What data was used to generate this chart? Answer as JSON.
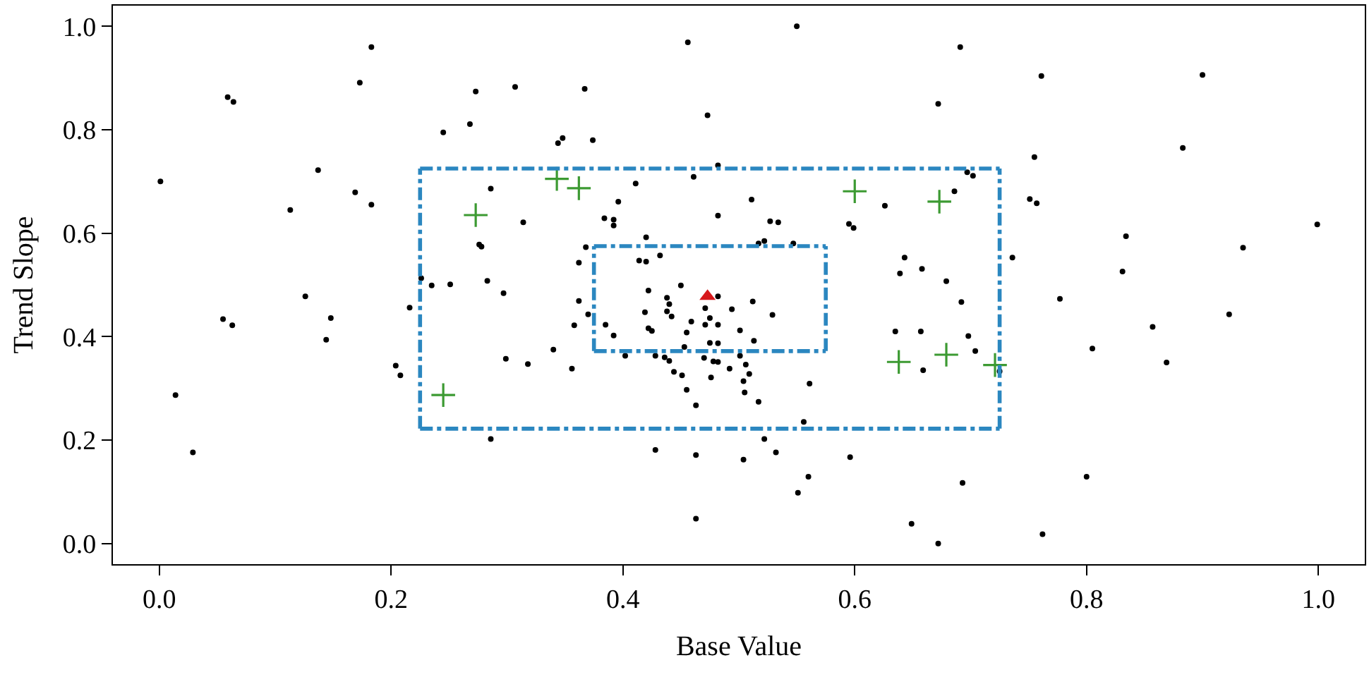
{
  "chart_data": {
    "type": "scatter",
    "xlabel": "Base Value",
    "ylabel": "Trend Slope",
    "xlim": [
      -0.04,
      1.04
    ],
    "ylim": [
      -0.04,
      1.04
    ],
    "xticks": [
      {
        "value": 0,
        "label": "0.0"
      },
      0.2,
      0.4,
      0.6,
      0.8,
      {
        "value": 1,
        "label": "1.0"
      }
    ],
    "yticks": [
      {
        "value": 0,
        "label": "0.0"
      },
      0.2,
      0.4,
      0.6,
      0.8,
      {
        "value": 1,
        "label": "1.0"
      }
    ],
    "grid": false,
    "legend": false,
    "series": [
      {
        "type": "scatter",
        "marker": "circle",
        "color": "#000000",
        "x": [
          0.001,
          0.059,
          0.064,
          0.183,
          0.173,
          0.273,
          0.307,
          0.245,
          0.268,
          0.137,
          0.169,
          0.183,
          0.113,
          0.286,
          0.314,
          0.276,
          0.278,
          0.226,
          0.235,
          0.251,
          0.283,
          0.297,
          0.126,
          0.055,
          0.063,
          0.148,
          0.144,
          0.014,
          0.029,
          0.204,
          0.208,
          0.216,
          0.299,
          0.318,
          0.286,
          0.456,
          0.55,
          0.367,
          0.473,
          0.672,
          0.344,
          0.348,
          0.374,
          0.482,
          0.461,
          0.411,
          0.396,
          0.511,
          0.384,
          0.392,
          0.392,
          0.482,
          0.527,
          0.534,
          0.626,
          0.595,
          0.599,
          0.42,
          0.368,
          0.362,
          0.414,
          0.42,
          0.432,
          0.517,
          0.522,
          0.547,
          0.643,
          0.639,
          0.658,
          0.422,
          0.45,
          0.482,
          0.362,
          0.37,
          0.358,
          0.34,
          0.356,
          0.385,
          0.392,
          0.402,
          0.419,
          0.422,
          0.425,
          0.438,
          0.44,
          0.438,
          0.442,
          0.459,
          0.455,
          0.471,
          0.475,
          0.471,
          0.482,
          0.494,
          0.512,
          0.529,
          0.501,
          0.513,
          0.453,
          0.475,
          0.482,
          0.428,
          0.436,
          0.44,
          0.47,
          0.478,
          0.482,
          0.501,
          0.506,
          0.492,
          0.444,
          0.451,
          0.476,
          0.509,
          0.504,
          0.455,
          0.505,
          0.517,
          0.463,
          0.561,
          0.556,
          0.522,
          0.532,
          0.428,
          0.463,
          0.504,
          0.596,
          0.56,
          0.551,
          0.463,
          0.635,
          0.657,
          0.659,
          0.649,
          0.672,
          0.691,
          0.761,
          0.9,
          0.883,
          0.755,
          0.697,
          0.702,
          0.686,
          0.751,
          0.757,
          0.999,
          0.834,
          0.935,
          0.736,
          0.831,
          0.679,
          0.692,
          0.698,
          0.704,
          0.725,
          0.777,
          0.805,
          0.857,
          0.923,
          0.869,
          0.693,
          0.8,
          0.762
        ],
        "values": [
          0.7,
          0.863,
          0.854,
          0.96,
          0.891,
          0.874,
          0.883,
          0.795,
          0.811,
          0.722,
          0.679,
          0.655,
          0.645,
          0.686,
          0.621,
          0.578,
          0.574,
          0.513,
          0.499,
          0.501,
          0.508,
          0.484,
          0.478,
          0.434,
          0.422,
          0.436,
          0.394,
          0.287,
          0.176,
          0.344,
          0.325,
          0.456,
          0.357,
          0.347,
          0.202,
          0.969,
          1.0,
          0.879,
          0.828,
          0.85,
          0.774,
          0.784,
          0.78,
          0.731,
          0.709,
          0.696,
          0.661,
          0.665,
          0.629,
          0.626,
          0.615,
          0.634,
          0.623,
          0.621,
          0.653,
          0.618,
          0.61,
          0.592,
          0.573,
          0.543,
          0.547,
          0.545,
          0.557,
          0.58,
          0.585,
          0.58,
          0.553,
          0.522,
          0.531,
          0.489,
          0.499,
          0.478,
          0.469,
          0.443,
          0.422,
          0.375,
          0.338,
          0.423,
          0.402,
          0.363,
          0.447,
          0.416,
          0.411,
          0.475,
          0.463,
          0.449,
          0.439,
          0.429,
          0.408,
          0.455,
          0.436,
          0.423,
          0.423,
          0.453,
          0.468,
          0.442,
          0.412,
          0.392,
          0.38,
          0.388,
          0.387,
          0.363,
          0.36,
          0.353,
          0.359,
          0.352,
          0.351,
          0.363,
          0.346,
          0.338,
          0.332,
          0.325,
          0.321,
          0.328,
          0.314,
          0.297,
          0.292,
          0.274,
          0.267,
          0.309,
          0.235,
          0.202,
          0.176,
          0.181,
          0.171,
          0.162,
          0.167,
          0.129,
          0.098,
          0.048,
          0.41,
          0.41,
          0.335,
          0.038,
          0.0,
          0.96,
          0.904,
          0.906,
          0.765,
          0.747,
          0.718,
          0.711,
          0.681,
          0.666,
          0.658,
          0.617,
          0.594,
          0.572,
          0.553,
          0.526,
          0.507,
          0.467,
          0.401,
          0.372,
          0.333,
          0.473,
          0.377,
          0.419,
          0.443,
          0.35,
          0.117,
          0.129,
          0.018
        ]
      },
      {
        "type": "scatter",
        "marker": "cross",
        "color": "#3c9a32",
        "x": [
          0.245,
          0.273,
          0.343,
          0.362,
          0.6,
          0.673,
          0.638,
          0.679,
          0.721
        ],
        "values": [
          0.287,
          0.635,
          0.705,
          0.687,
          0.681,
          0.661,
          0.351,
          0.365,
          0.345
        ]
      },
      {
        "type": "line",
        "marker": "none",
        "line_style": "dashed",
        "color": "#2b87c0",
        "x": [
          0.225,
          0.725
        ],
        "values": [
          0.222,
          0.222
        ]
      },
      {
        "type": "line",
        "marker": "none",
        "line_style": "dashed",
        "color": "#2b87c0",
        "x": [
          0.225,
          0.725
        ],
        "values": [
          0.725,
          0.725
        ]
      },
      {
        "type": "line",
        "marker": "none",
        "line_style": "dashed",
        "color": "#2b87c0",
        "x": [
          0.225,
          0.225
        ],
        "values": [
          0.222,
          0.725
        ]
      },
      {
        "type": "line",
        "marker": "none",
        "line_style": "dashed",
        "color": "#2b87c0",
        "x": [
          0.725,
          0.725
        ],
        "values": [
          0.222,
          0.725
        ]
      },
      {
        "type": "line",
        "marker": "none",
        "line_style": "dashed",
        "color": "#2b87c0",
        "x": [
          0.375,
          0.575
        ],
        "values": [
          0.372,
          0.372
        ]
      },
      {
        "type": "line",
        "marker": "none",
        "line_style": "dashed",
        "color": "#2b87c0",
        "x": [
          0.375,
          0.575
        ],
        "values": [
          0.575,
          0.575
        ]
      },
      {
        "type": "line",
        "marker": "none",
        "line_style": "dashed",
        "color": "#2b87c0",
        "x": [
          0.375,
          0.375
        ],
        "values": [
          0.372,
          0.575
        ]
      },
      {
        "type": "line",
        "marker": "none",
        "line_style": "dashed",
        "color": "#2b87c0",
        "x": [
          0.575,
          0.575
        ],
        "values": [
          0.372,
          0.575
        ]
      },
      {
        "type": "scatter",
        "marker": "triangle",
        "color": "#d7191c",
        "x": [
          0.473
        ],
        "values": [
          0.478
        ]
      }
    ]
  }
}
